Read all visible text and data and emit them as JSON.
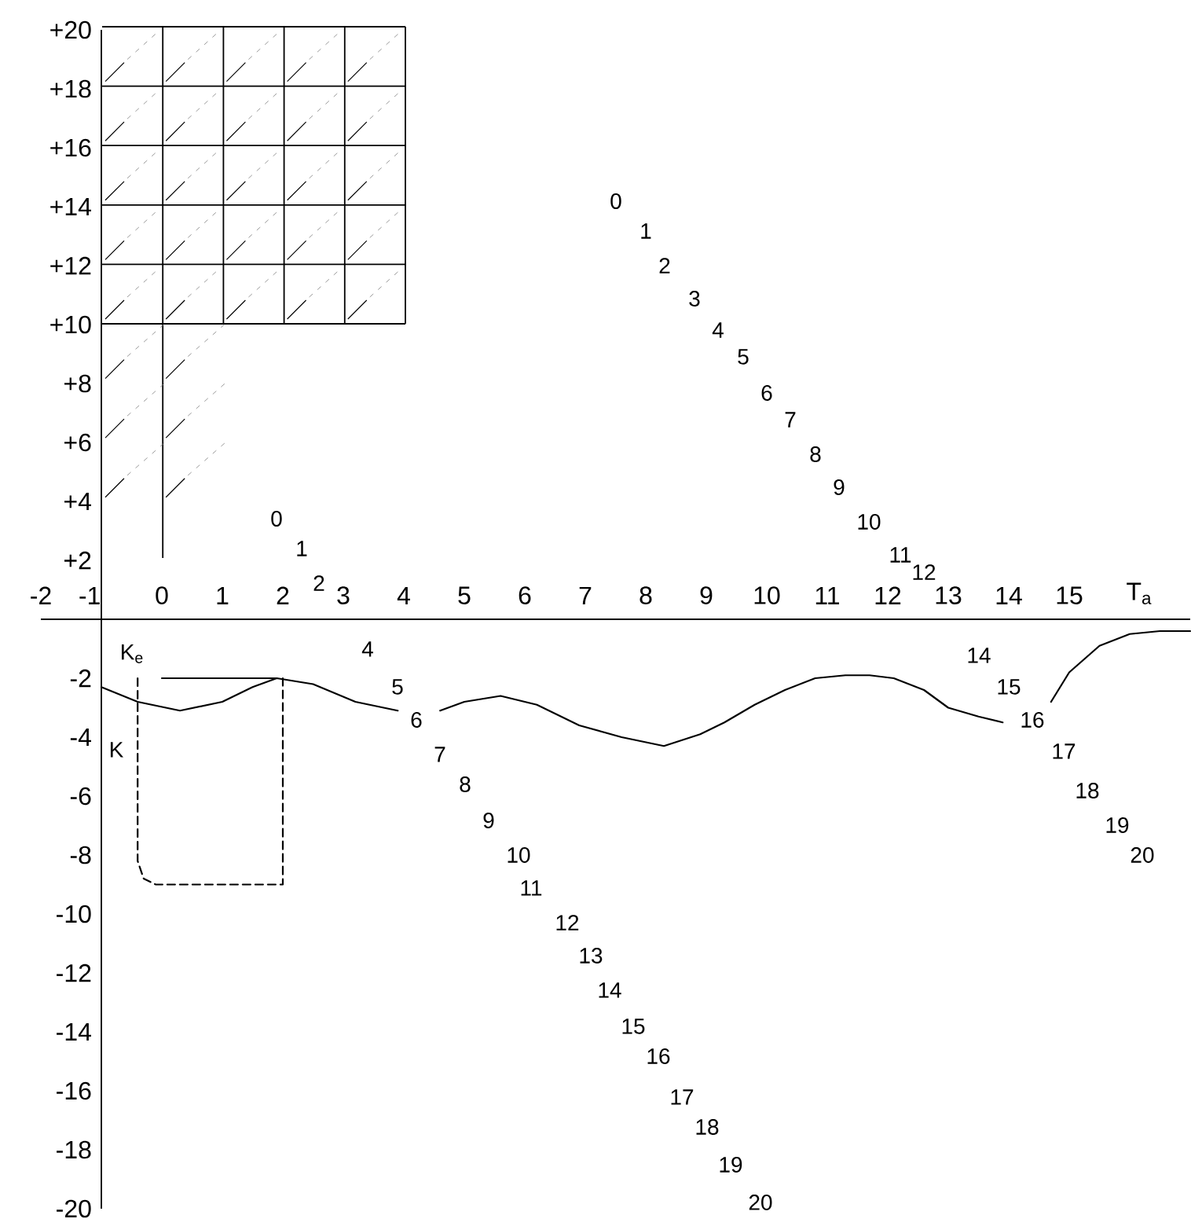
{
  "chart_data": {
    "type": "line",
    "xlabel": "T$_{a}$",
    "xlim": [
      -2,
      17
    ],
    "ylim": [
      -20,
      20
    ],
    "xticks": [
      -2,
      -1,
      0,
      1,
      2,
      3,
      4,
      5,
      6,
      7,
      8,
      9,
      10,
      11,
      12,
      13,
      14,
      15
    ],
    "yticks": [
      {
        "value": 20,
        "label": "+20"
      },
      {
        "value": 18,
        "label": "+18"
      },
      {
        "value": 16,
        "label": "+16"
      },
      {
        "value": 14,
        "label": "+14"
      },
      {
        "value": 12,
        "label": "+12"
      },
      {
        "value": 10,
        "label": "+10"
      },
      {
        "value": 8,
        "label": "+8"
      },
      {
        "value": 6,
        "label": "+6"
      },
      {
        "value": 4,
        "label": "+4"
      },
      {
        "value": 2,
        "label": "+2"
      },
      -2,
      -4,
      -6,
      -8,
      -10,
      -12,
      -14,
      -16,
      -18,
      -20
    ],
    "ref_lines": [
      {
        "axis": "x",
        "value": -1,
        "color": "#000000"
      }
    ],
    "series": [
      {
        "color": "#000000",
        "x": [
          -1.0,
          -0.4,
          0.3,
          1.0,
          1.5,
          1.9,
          2.5,
          3.2,
          3.9,
          4.25,
          4.6,
          5.0,
          5.6,
          6.2,
          6.9,
          7.6,
          8.3,
          8.9,
          9.3,
          9.8,
          10.3,
          10.8,
          11.3,
          11.7,
          12.1,
          12.6,
          13.0,
          13.5,
          13.9
        ],
        "values": [
          -2.3,
          -2.8,
          -3.1,
          -2.8,
          -2.3,
          -2.0,
          -2.2,
          -2.8,
          -3.1,
          null,
          -3.1,
          -2.8,
          -2.6,
          -2.9,
          -3.6,
          -4.0,
          -4.3,
          -3.9,
          -3.5,
          -2.9,
          -2.4,
          -2.0,
          -1.9,
          -1.9,
          -2.0,
          -2.4,
          -3.0,
          -3.3,
          -3.5
        ]
      },
      {
        "color": "#000000",
        "x": [
          14.7,
          15.0,
          15.5,
          16.0,
          16.5,
          17.0
        ],
        "values": [
          -2.8,
          -1.8,
          -0.9,
          -0.5,
          -0.4,
          -0.4
        ]
      },
      {
        "color": "#000000",
        "x": [
          0.0,
          1.9
        ],
        "values": [
          -2.0,
          -2.0
        ]
      },
      {
        "color": "#000000",
        "line_style": "dashed",
        "x": [
          -0.4,
          -0.4,
          -0.3,
          -0.1,
          2.0,
          2.0
        ],
        "values": [
          -2.0,
          -8.2,
          -8.8,
          -9.0,
          -9.0,
          -2.0
        ]
      }
    ],
    "annotations": [
      "0",
      "1",
      "2",
      "3",
      "4",
      "5",
      "6",
      "7",
      "8",
      "9",
      "10",
      "11",
      "12",
      "14",
      "15",
      "16",
      "17",
      "18",
      "19",
      "20",
      "0",
      "1",
      "2",
      "4",
      "5",
      "6",
      "7",
      "8",
      "9",
      "10",
      "11",
      "12",
      "13",
      "14",
      "15",
      "16",
      "17",
      "18",
      "19",
      "20",
      "K$_{e}$",
      "K"
    ]
  }
}
